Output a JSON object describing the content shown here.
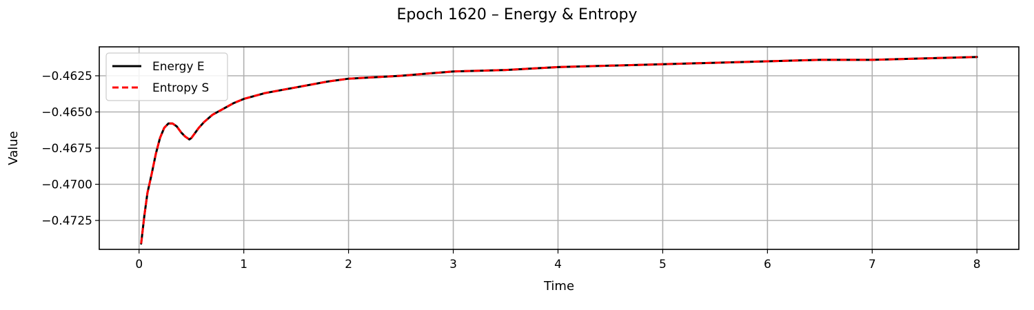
{
  "chart_data": {
    "type": "line",
    "title": "Epoch 1620 – Energy & Entropy",
    "xlabel": "Time",
    "ylabel": "Value",
    "xlim": [
      -0.38,
      8.4
    ],
    "ylim": [
      -0.4745,
      -0.4605
    ],
    "x_ticks": [
      0,
      1,
      2,
      3,
      4,
      5,
      6,
      7,
      8
    ],
    "x_tick_labels": [
      "0",
      "1",
      "2",
      "3",
      "4",
      "5",
      "6",
      "7",
      "8"
    ],
    "y_ticks": [
      -0.4625,
      -0.465,
      -0.4675,
      -0.47,
      -0.4725
    ],
    "y_tick_labels": [
      "−0.4625",
      "−0.4650",
      "−0.4675",
      "−0.4700",
      "−0.4725"
    ],
    "grid": true,
    "legend_position": "upper-left",
    "x": [
      0.02,
      0.05,
      0.08,
      0.12,
      0.16,
      0.2,
      0.24,
      0.28,
      0.32,
      0.36,
      0.4,
      0.44,
      0.48,
      0.5,
      0.53,
      0.57,
      0.62,
      0.7,
      0.8,
      0.9,
      1.0,
      1.2,
      1.5,
      1.8,
      2.0,
      2.5,
      3.0,
      3.5,
      4.0,
      4.5,
      5.0,
      5.5,
      6.0,
      6.5,
      7.0,
      7.5,
      8.0
    ],
    "series": [
      {
        "name": "Energy E",
        "color": "#000000",
        "style": "solid",
        "values": [
          -0.4741,
          -0.4722,
          -0.4706,
          -0.4693,
          -0.4679,
          -0.4668,
          -0.4661,
          -0.4658,
          -0.4658,
          -0.466,
          -0.4664,
          -0.4667,
          -0.4669,
          -0.4668,
          -0.4665,
          -0.4661,
          -0.4657,
          -0.4652,
          -0.4648,
          -0.4644,
          -0.4641,
          -0.4637,
          -0.4633,
          -0.4629,
          -0.4627,
          -0.4625,
          -0.4622,
          -0.4621,
          -0.4619,
          -0.4618,
          -0.4617,
          -0.4616,
          -0.4615,
          -0.4614,
          -0.4614,
          -0.4613,
          -0.4612
        ]
      },
      {
        "name": "Entropy S",
        "color": "#ff0000",
        "style": "dashed",
        "values": [
          -0.4741,
          -0.4722,
          -0.4706,
          -0.4693,
          -0.4679,
          -0.4668,
          -0.4661,
          -0.4658,
          -0.4658,
          -0.466,
          -0.4664,
          -0.4667,
          -0.4669,
          -0.4668,
          -0.4665,
          -0.4661,
          -0.4657,
          -0.4652,
          -0.4648,
          -0.4644,
          -0.4641,
          -0.4637,
          -0.4633,
          -0.4629,
          -0.4627,
          -0.4625,
          -0.4622,
          -0.4621,
          -0.4619,
          -0.4618,
          -0.4617,
          -0.4616,
          -0.4615,
          -0.4614,
          -0.4614,
          -0.4613,
          -0.4612
        ]
      }
    ]
  }
}
